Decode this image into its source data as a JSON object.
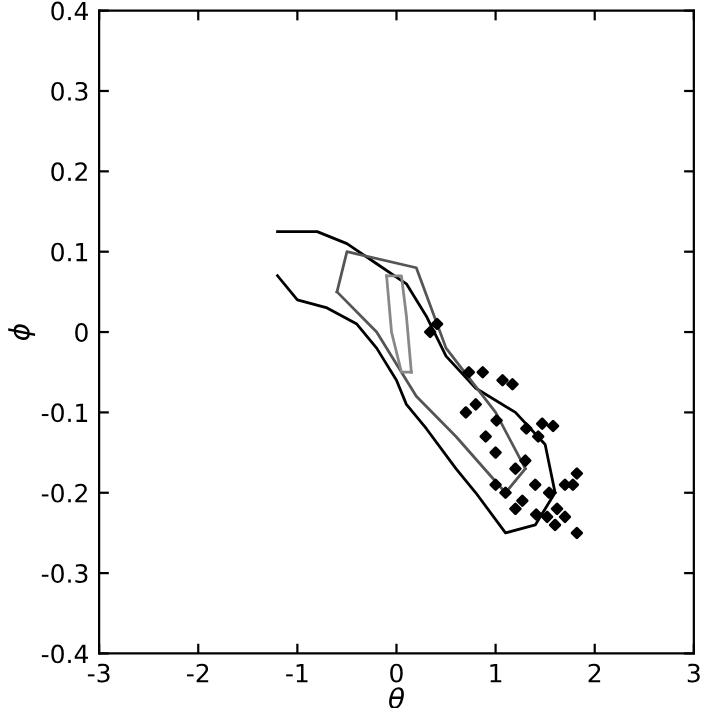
{
  "chart_data": {
    "type": "line",
    "xlabel": "θ",
    "ylabel": "ϕ",
    "xlim": [
      -3,
      3
    ],
    "ylim": [
      -0.4,
      0.4
    ],
    "xticks": [
      -3,
      -2,
      -1,
      0,
      1,
      2,
      3
    ],
    "yticks": [
      -0.4,
      -0.3,
      -0.2,
      -0.1,
      0,
      0.1,
      0.2,
      0.3,
      0.4
    ],
    "grid": false,
    "legend": false,
    "series": [
      {
        "color": "#000000",
        "line_style": "solid",
        "x": [
          -1.2,
          -0.8,
          -0.5,
          -0.2,
          0.1,
          0.3,
          0.5,
          0.8,
          1.2,
          1.5,
          1.6
        ],
        "values": [
          0.125,
          0.125,
          0.11,
          0.085,
          0.06,
          0.02,
          -0.03,
          -0.07,
          -0.1,
          -0.14,
          -0.2
        ]
      },
      {
        "color": "#000000",
        "line_style": "solid",
        "x": [
          -1.2,
          -1.0,
          -0.7,
          -0.4,
          -0.2,
          0.0,
          0.1,
          0.3,
          0.6,
          0.8,
          1.1,
          1.4,
          1.6
        ],
        "values": [
          0.07,
          0.04,
          0.03,
          0.01,
          -0.02,
          -0.06,
          -0.09,
          -0.12,
          -0.17,
          -0.2,
          -0.25,
          -0.24,
          -0.2
        ]
      },
      {
        "color": "#555555",
        "line_style": "solid",
        "x": [
          -0.6,
          -0.5,
          0.2,
          0.5,
          1.0,
          1.3
        ],
        "values": [
          0.05,
          0.1,
          0.08,
          -0.02,
          -0.1,
          -0.17
        ]
      },
      {
        "color": "#555555",
        "line_style": "solid",
        "x": [
          -0.6,
          -0.2,
          0.2,
          0.6,
          1.1,
          1.3
        ],
        "values": [
          0.05,
          0.0,
          -0.08,
          -0.13,
          -0.2,
          -0.17
        ]
      },
      {
        "color": "#888888",
        "line_style": "solid",
        "x": [
          -0.1,
          0.05,
          0.1,
          0.15
        ],
        "values": [
          0.07,
          0.07,
          0.02,
          -0.05
        ]
      },
      {
        "color": "#888888",
        "line_style": "solid",
        "x": [
          -0.1,
          -0.05,
          0.05,
          0.15
        ],
        "values": [
          0.07,
          0.0,
          -0.05,
          -0.05
        ]
      },
      {
        "type": "scatter",
        "color": "#000000",
        "marker": "diamond",
        "x": [
          1.07,
          1.17,
          1.58,
          1.43,
          1.82,
          1.7,
          1.78,
          1.54,
          1.62,
          1.52,
          1.7,
          1.6,
          1.82,
          1.41,
          1.27,
          1.31,
          1.47,
          1.01,
          0.73,
          0.87,
          0.34,
          0.41,
          1.0,
          1.2,
          0.9,
          1.1,
          1.3,
          0.8,
          1.4,
          1.2,
          1.0,
          0.7
        ],
        "values": [
          -0.06,
          -0.065,
          -0.117,
          -0.13,
          -0.176,
          -0.19,
          -0.19,
          -0.2,
          -0.22,
          -0.23,
          -0.23,
          -0.24,
          -0.25,
          -0.227,
          -0.21,
          -0.12,
          -0.114,
          -0.11,
          -0.05,
          -0.05,
          0.0,
          0.01,
          -0.15,
          -0.17,
          -0.13,
          -0.2,
          -0.16,
          -0.09,
          -0.19,
          -0.22,
          -0.19,
          -0.1
        ]
      }
    ]
  }
}
